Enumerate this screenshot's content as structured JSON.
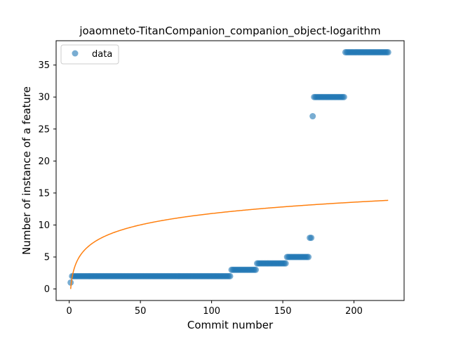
{
  "chart_data": {
    "type": "scatter",
    "title": "joaomneto-TitanCompanion_companion_object-logarithm",
    "xlabel": "Commit number",
    "ylabel": "Number of instance of a feature",
    "xlim": [
      -9.2,
      235.2
    ],
    "ylim": [
      -1.8,
      38.8
    ],
    "xticks": [
      0,
      50,
      100,
      150,
      200
    ],
    "yticks": [
      0,
      5,
      10,
      15,
      20,
      25,
      30,
      35
    ],
    "grid": false,
    "legend": {
      "position": "top-left",
      "entries": [
        "data"
      ]
    },
    "colors": {
      "data": "#1f77b4",
      "fit": "#ff7f0e"
    },
    "series": [
      {
        "name": "data",
        "kind": "scatter",
        "segments": [
          {
            "x_start": 1,
            "x_end": 1,
            "y": 1
          },
          {
            "x_start": 2,
            "x_end": 113,
            "y": 2
          },
          {
            "x_start": 114,
            "x_end": 131,
            "y": 3
          },
          {
            "x_start": 132,
            "x_end": 152,
            "y": 4
          },
          {
            "x_start": 153,
            "x_end": 168,
            "y": 5
          },
          {
            "x_start": 169,
            "x_end": 170,
            "y": 8
          },
          {
            "x_start": 171,
            "x_end": 171,
            "y": 27
          },
          {
            "x_start": 172,
            "x_end": 193,
            "y": 30
          },
          {
            "x_start": 194,
            "x_end": 224,
            "y": 37
          }
        ]
      },
      {
        "kind": "line",
        "fit": {
          "model": "a*ln(x)+b",
          "a": 2.56,
          "b": 0.0
        },
        "x_range": [
          1,
          224
        ]
      }
    ]
  }
}
